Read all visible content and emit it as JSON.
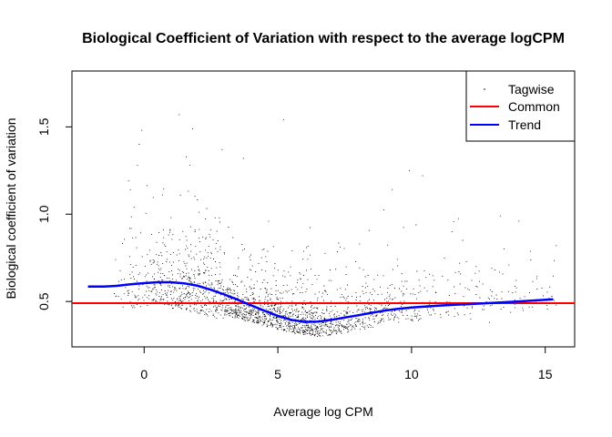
{
  "chart_data": {
    "type": "scatter",
    "title": "Biological Coefficient of Variation with respect to the average logCPM",
    "xlabel": "Average log CPM",
    "ylabel": "Biological coefficient of variation",
    "xlim": [
      -2.7,
      16.1
    ],
    "ylim": [
      0.24,
      1.82
    ],
    "x_ticks": [
      0,
      5,
      10,
      15
    ],
    "y_ticks": [
      0.5,
      1.0,
      1.5
    ],
    "x_tick_labels": [
      "0",
      "5",
      "10",
      "15"
    ],
    "y_tick_labels": [
      "0.5",
      "1.0",
      "1.5"
    ],
    "legend": {
      "position": "top-right",
      "entries": [
        {
          "label": "Tagwise",
          "symbol": "point",
          "color": "#000000"
        },
        {
          "label": "Common",
          "symbol": "line",
          "color": "#ff0000"
        },
        {
          "label": "Trend",
          "symbol": "line",
          "color": "#0000ff"
        }
      ]
    },
    "series": [
      {
        "name": "Tagwise",
        "kind": "points",
        "color": "#000000",
        "density_profile": {
          "x_range": [
            -1.4,
            15.4
          ],
          "dense_core_x": [
            -1.2,
            8.5
          ],
          "center_y_at": [
            [
              -1.0,
              0.52
            ],
            [
              0.5,
              0.55
            ],
            [
              2.0,
              0.5
            ],
            [
              4.0,
              0.42
            ],
            [
              5.5,
              0.36
            ],
            [
              6.5,
              0.34
            ],
            [
              7.5,
              0.36
            ],
            [
              9.0,
              0.42
            ],
            [
              12.0,
              0.47
            ],
            [
              15.0,
              0.5
            ]
          ],
          "max_y": 1.57
        },
        "highlight_points": [
          [
            1.3,
            1.57
          ],
          [
            5.2,
            1.54
          ],
          [
            1.8,
            1.49
          ],
          [
            -0.1,
            1.48
          ],
          [
            2.9,
            1.37
          ],
          [
            -0.2,
            1.4
          ],
          [
            3.7,
            1.32
          ],
          [
            9.9,
            1.25
          ],
          [
            10.4,
            1.22
          ],
          [
            13.3,
            0.99
          ],
          [
            14.0,
            0.96
          ],
          [
            15.4,
            0.82
          ],
          [
            11.5,
            0.9
          ],
          [
            11.9,
            0.85
          ],
          [
            12.4,
            0.7
          ],
          [
            13.1,
            0.68
          ],
          [
            13.9,
            0.62
          ],
          [
            14.4,
            0.55
          ],
          [
            12.2,
            0.4
          ],
          [
            12.9,
            0.38
          ],
          [
            10.9,
            0.55
          ],
          [
            11.8,
            0.6
          ]
        ]
      },
      {
        "name": "Common",
        "kind": "hline",
        "color": "#ff0000",
        "y": 0.49
      },
      {
        "name": "Trend",
        "kind": "line",
        "color": "#0000ff",
        "x": [
          -2.1,
          -1.5,
          -1.0,
          -0.5,
          0.0,
          0.5,
          1.0,
          1.5,
          2.0,
          2.5,
          3.0,
          3.5,
          4.0,
          4.5,
          5.0,
          5.5,
          6.0,
          6.5,
          7.0,
          7.5,
          8.0,
          8.5,
          9.0,
          9.5,
          10.0,
          11.0,
          12.0,
          13.0,
          14.0,
          15.3
        ],
        "y": [
          0.585,
          0.585,
          0.59,
          0.598,
          0.605,
          0.61,
          0.61,
          0.604,
          0.59,
          0.567,
          0.54,
          0.51,
          0.478,
          0.447,
          0.418,
          0.395,
          0.383,
          0.385,
          0.395,
          0.408,
          0.421,
          0.435,
          0.448,
          0.458,
          0.466,
          0.476,
          0.484,
          0.492,
          0.5,
          0.512
        ]
      }
    ]
  }
}
